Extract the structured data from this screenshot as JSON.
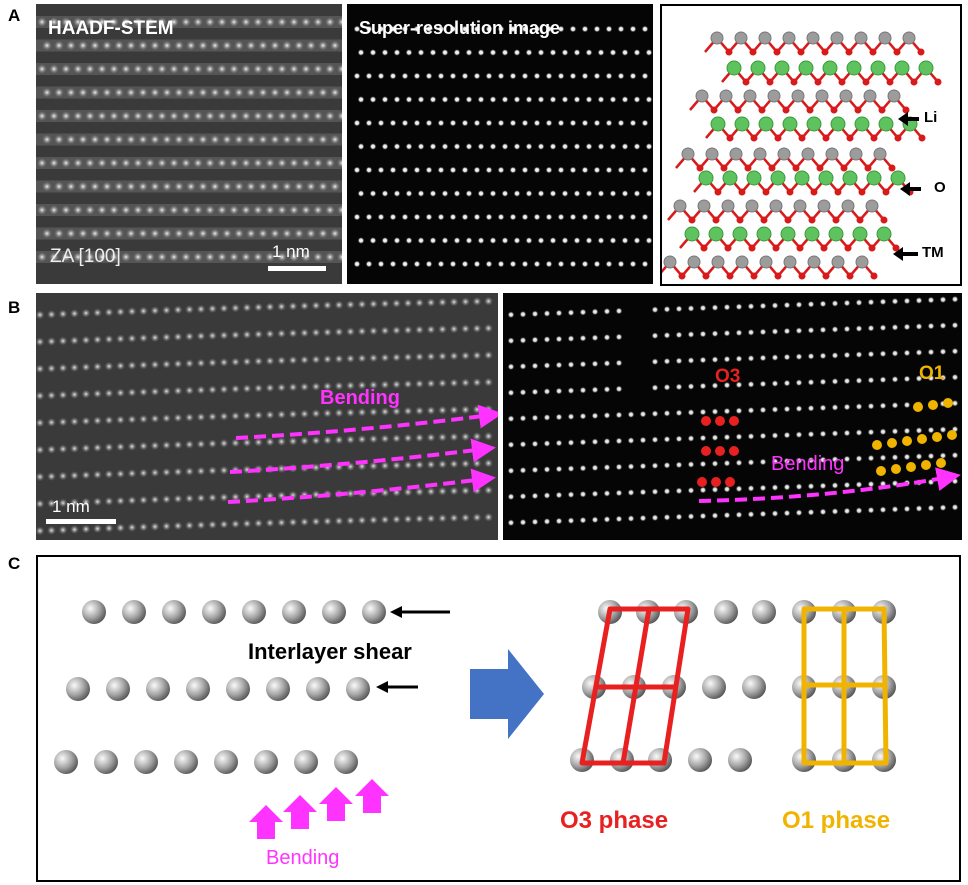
{
  "panel_labels": {
    "a": "A",
    "b": "B",
    "c": "C"
  },
  "panel_a": {
    "stem_title": "HAADF-STEM",
    "zone_axis": "ZA [100]",
    "scale_bar": "1 nm",
    "superres_title": "Super-resolution image",
    "legend": {
      "li": "Li",
      "o": "O",
      "tm": "TM"
    }
  },
  "panel_b": {
    "bending_left": "Bending",
    "scale_bar": "1 nm",
    "o3_label": "O3",
    "o1_label": "O1",
    "bending_right": "Bending"
  },
  "panel_c": {
    "shear_label": "Interlayer shear",
    "bending_label": "Bending",
    "o3_phase": "O3 phase",
    "o1_phase": "O1 phase"
  },
  "colors": {
    "magenta": "#ff33ff",
    "o3_red": "#e82020",
    "o1_gold": "#f0b400",
    "arrow_blue": "#4472c4",
    "li_green": "#5ec25e",
    "oxygen_red": "#d81a1a",
    "tm_gray": "#9c9c9c"
  }
}
